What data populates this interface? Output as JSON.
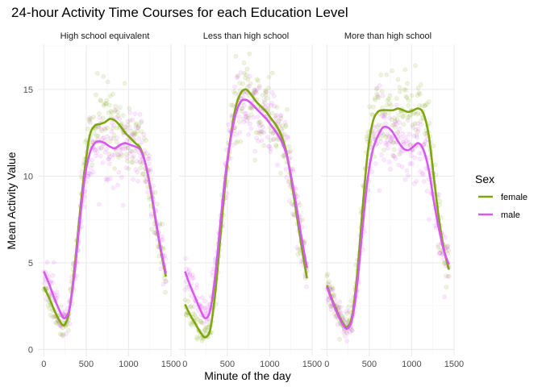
{
  "chart_data": {
    "type": "scatter",
    "title": "24-hour Activity Time Courses for each Education Level",
    "xlabel": "Minute of the day",
    "ylabel": "Mean Activity Value",
    "xlim": [
      -70,
      1510
    ],
    "ylim": [
      -0.4,
      17.6
    ],
    "x_ticks": [
      0,
      500,
      1000,
      1500
    ],
    "x_tick_labels": [
      "0",
      "500",
      "1000",
      "1500"
    ],
    "y_ticks": [
      0,
      5,
      10,
      15
    ],
    "y_tick_labels": [
      "0",
      "5",
      "10",
      "15"
    ],
    "grid": true,
    "legend": {
      "title": "Sex",
      "placement": "right",
      "entries": [
        {
          "label": "female",
          "color": "#7fa60e"
        },
        {
          "label": "male",
          "color": "#d958f0"
        }
      ]
    },
    "panels": [
      {
        "label": "High school equivalent",
        "series": [
          {
            "name": "female",
            "color": "#7fa60e",
            "x": [
              0,
              60,
              120,
              180,
              240,
              300,
              360,
              420,
              480,
              540,
              600,
              660,
              720,
              780,
              840,
              900,
              960,
              1020,
              1080,
              1140,
              1200,
              1260,
              1320,
              1380,
              1440
            ],
            "y": [
              3.6,
              3.0,
              2.3,
              1.7,
              1.4,
              2.2,
              4.6,
              7.6,
              10.3,
              12.3,
              12.9,
              13.0,
              13.1,
              13.3,
              13.2,
              12.9,
              12.5,
              12.2,
              11.9,
              11.6,
              10.7,
              9.2,
              7.4,
              5.7,
              4.2
            ]
          },
          {
            "name": "male",
            "color": "#d958f0",
            "x": [
              0,
              60,
              120,
              180,
              240,
              300,
              360,
              420,
              480,
              540,
              600,
              660,
              720,
              780,
              840,
              900,
              960,
              1020,
              1080,
              1140,
              1200,
              1260,
              1320,
              1380,
              1440
            ],
            "y": [
              4.5,
              3.8,
              3.0,
              2.3,
              1.8,
              2.3,
              4.3,
              7.2,
              9.8,
              11.3,
              11.9,
              12.0,
              11.9,
              11.7,
              11.6,
              11.8,
              11.9,
              11.8,
              11.7,
              11.5,
              10.7,
              9.3,
              7.5,
              5.8,
              4.4
            ]
          }
        ]
      },
      {
        "label": "Less than high school",
        "series": [
          {
            "name": "female",
            "color": "#7fa60e",
            "x": [
              0,
              60,
              120,
              180,
              240,
              300,
              360,
              420,
              480,
              540,
              600,
              660,
              720,
              780,
              840,
              900,
              960,
              1020,
              1080,
              1140,
              1200,
              1260,
              1320,
              1380,
              1440
            ],
            "y": [
              2.6,
              2.0,
              1.5,
              1.0,
              0.7,
              1.2,
              3.4,
              6.6,
              9.8,
              12.3,
              14.0,
              14.8,
              15.0,
              14.7,
              14.3,
              14.0,
              13.7,
              13.3,
              12.9,
              12.3,
              11.3,
              9.6,
              7.7,
              5.8,
              4.1
            ]
          },
          {
            "name": "male",
            "color": "#d958f0",
            "x": [
              0,
              60,
              120,
              180,
              240,
              300,
              360,
              420,
              480,
              540,
              600,
              660,
              720,
              780,
              840,
              900,
              960,
              1020,
              1080,
              1140,
              1200,
              1260,
              1320,
              1380,
              1440
            ],
            "y": [
              4.5,
              3.7,
              3.0,
              2.3,
              1.8,
              2.3,
              4.4,
              7.4,
              10.2,
              12.2,
              13.6,
              14.3,
              14.4,
              14.2,
              13.9,
              13.6,
              13.3,
              12.9,
              12.5,
              12.0,
              11.2,
              9.8,
              8.1,
              6.3,
              4.7
            ]
          }
        ]
      },
      {
        "label": "More than high school",
        "series": [
          {
            "name": "female",
            "color": "#7fa60e",
            "x": [
              0,
              60,
              120,
              180,
              240,
              300,
              360,
              420,
              480,
              540,
              600,
              660,
              720,
              780,
              840,
              900,
              960,
              1020,
              1080,
              1140,
              1200,
              1260,
              1320,
              1380,
              1440
            ],
            "y": [
              3.7,
              2.9,
              2.2,
              1.6,
              1.3,
              2.0,
              4.5,
              8.1,
              11.3,
              13.1,
              13.7,
              13.8,
              13.8,
              13.8,
              13.9,
              13.8,
              13.7,
              13.8,
              13.9,
              13.6,
              12.4,
              10.0,
              7.6,
              5.8,
              4.6
            ]
          },
          {
            "name": "male",
            "color": "#d958f0",
            "x": [
              0,
              60,
              120,
              180,
              240,
              300,
              360,
              420,
              480,
              540,
              600,
              660,
              720,
              780,
              840,
              900,
              960,
              1020,
              1080,
              1140,
              1200,
              1260,
              1320,
              1380,
              1440
            ],
            "y": [
              3.6,
              2.8,
              2.1,
              1.5,
              1.2,
              1.8,
              3.9,
              7.0,
              9.8,
              11.5,
              12.3,
              12.8,
              12.8,
              12.5,
              12.0,
              11.6,
              11.5,
              11.7,
              11.9,
              11.5,
              10.4,
              8.6,
              7.0,
              5.7,
              4.9
            ]
          }
        ]
      }
    ]
  }
}
